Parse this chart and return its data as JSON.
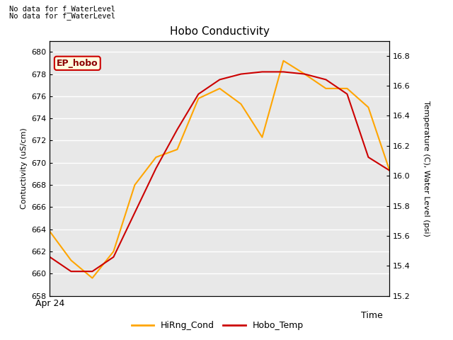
{
  "title": "Hobo Conductivity",
  "xlabel": "Time",
  "ylabel_left": "Contuctivity (uS/cm)",
  "ylabel_right": "Temperature (C), Water Level (psi)",
  "annotation_line1": "No data for f_WaterLevel",
  "annotation_line2": "No data for f̲WaterLevel",
  "legend_box_label": "EP_hobo",
  "legend_entries": [
    "HiRng_Cond",
    "Hobo_Temp"
  ],
  "hirng_color": "#FFA500",
  "hobo_color": "#CC0000",
  "x_values": [
    0,
    1,
    2,
    3,
    4,
    5,
    6,
    7,
    8,
    9,
    10,
    11,
    12,
    13,
    14,
    15,
    16
  ],
  "hirng_cond": [
    663.8,
    661.2,
    659.6,
    662.0,
    668.0,
    670.5,
    671.2,
    675.8,
    676.7,
    675.3,
    672.3,
    679.2,
    678.0,
    676.7,
    676.7,
    675.0,
    669.3
  ],
  "hobo_cond": [
    661.5,
    660.2,
    660.2,
    661.5,
    665.5,
    669.5,
    673.0,
    676.2,
    677.5,
    678.0,
    678.2,
    678.2,
    678.0,
    677.5,
    676.2,
    670.5,
    669.3
  ],
  "ylim_left": [
    658,
    681
  ],
  "ylim_right": [
    15.2,
    16.9
  ],
  "yticks_left": [
    658,
    660,
    662,
    664,
    666,
    668,
    670,
    672,
    674,
    676,
    678,
    680
  ],
  "yticks_right": [
    15.2,
    15.4,
    15.6,
    15.8,
    16.0,
    16.2,
    16.4,
    16.6,
    16.8
  ],
  "x_label_text": "Apr 24",
  "plot_bg_color": "#E8E8E8",
  "grid_color": "#FFFFFF",
  "fig_bg_color": "#FFFFFF"
}
